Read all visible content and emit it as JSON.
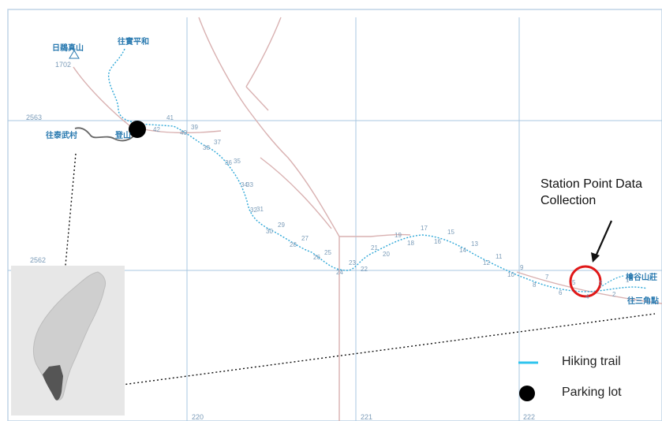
{
  "map": {
    "grid_labels": {
      "y_top": "2563",
      "y_bottom": "2562",
      "x_left": "220",
      "x_mid": "221",
      "x_right": "222"
    },
    "place_labels": {
      "mountain": "日鵜真山",
      "mountain_elevation": "1702",
      "to_pinghe": "往實平和",
      "to_taiwu": "往泰武村",
      "trailhead": "登山",
      "lodge": "檜谷山莊",
      "to_triangulation_point": "往三角點"
    },
    "station_numbers": [
      "42",
      "41",
      "40",
      "39",
      "38",
      "37",
      "36",
      "35",
      "34",
      "33",
      "32",
      "31",
      "30",
      "29",
      "28",
      "27",
      "26",
      "25",
      "24",
      "23",
      "22",
      "21",
      "20",
      "19",
      "18",
      "17",
      "16",
      "15",
      "14",
      "13",
      "12",
      "11",
      "10",
      "9",
      "8",
      "7",
      "6",
      "5",
      "4",
      "3",
      "2",
      "1"
    ],
    "annotation": {
      "line1": "Station Point Data",
      "line2": "Collection"
    },
    "legend": {
      "trail_label": "Hiking trail",
      "parking_label": "Parking lot"
    },
    "colors": {
      "grid": "#a9c7e0",
      "trail": "#2fa8d8",
      "road": "#d9b1b1",
      "parking": "#000000",
      "highlight_circle": "#e01818",
      "inset_bg": "#e7e7e7",
      "inset_region": "#555555"
    }
  }
}
